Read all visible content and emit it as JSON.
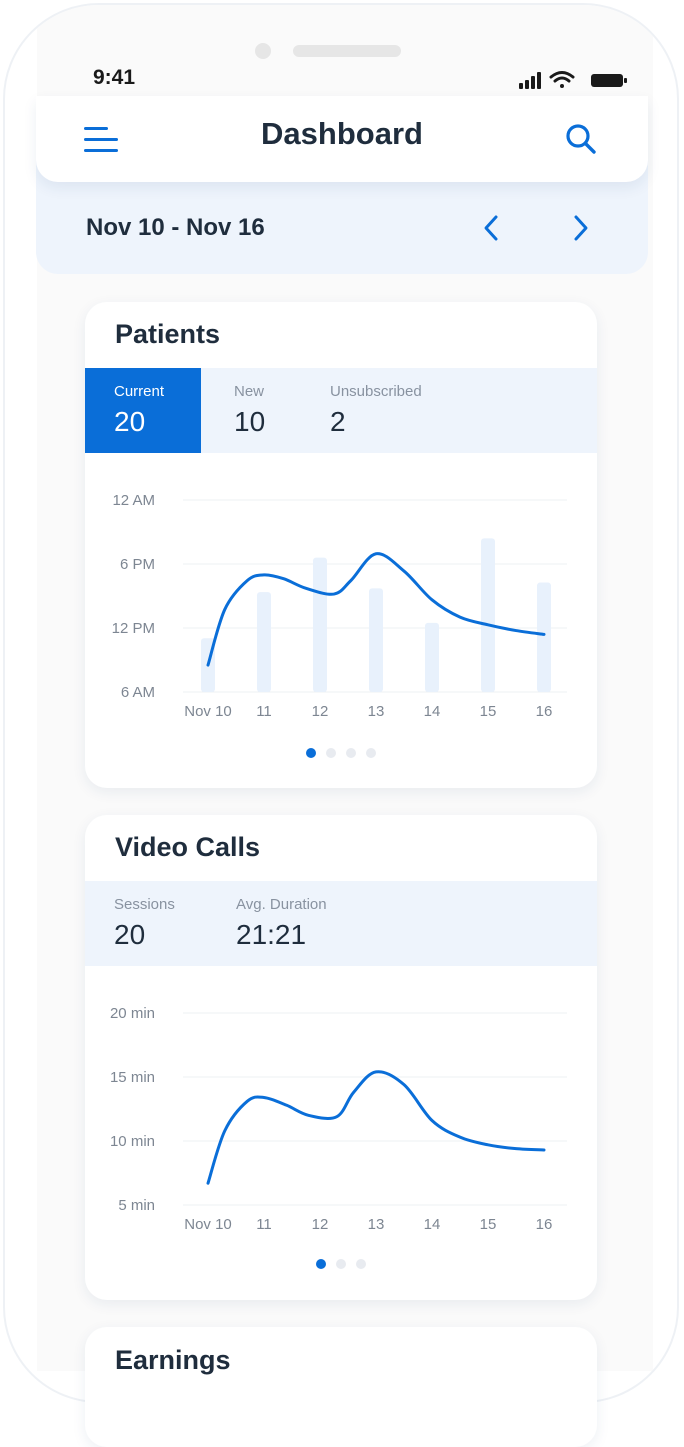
{
  "status_bar": {
    "time": "9:41"
  },
  "header": {
    "title": "Dashboard",
    "menu_icon": "hamburger-menu-icon",
    "search_icon": "search-icon"
  },
  "date_nav": {
    "range": "Nov 10 - Nov 16",
    "prev_icon": "chevron-left-icon",
    "next_icon": "chevron-right-icon"
  },
  "colors": {
    "accent": "#0a6ed8",
    "bar_fill": "#e8f1fc",
    "stats_bg": "#eef4fc",
    "text": "#1f2d3d"
  },
  "patients": {
    "title": "Patients",
    "stats": [
      {
        "label": "Current",
        "value": "20",
        "active": true
      },
      {
        "label": "New",
        "value": "10",
        "active": false
      },
      {
        "label": "Unsubscribed",
        "value": "2",
        "active": false
      }
    ],
    "pager": {
      "count": 4,
      "active": 0
    }
  },
  "video_calls": {
    "title": "Video Calls",
    "stats": [
      {
        "label": "Sessions",
        "value": "20"
      },
      {
        "label": "Avg. Duration",
        "value": "21:21"
      }
    ],
    "pager": {
      "count": 3,
      "active": 0
    }
  },
  "earnings": {
    "title": "Earnings"
  },
  "chart_data": [
    {
      "type": "line",
      "title": "",
      "y_ticks": [
        "12 AM",
        "6 PM",
        "12 PM",
        "6 AM"
      ],
      "x_ticks": [
        "Nov 10",
        "11",
        "12",
        "13",
        "14",
        "15",
        "16"
      ],
      "bars_series": {
        "name": "",
        "values": [
          0.28,
          0.52,
          0.7,
          0.54,
          0.36,
          0.8,
          0.57
        ]
      },
      "line_series": {
        "name": "",
        "x": [
          0,
          0.3,
          0.7,
          1,
          1.35,
          1.75,
          2.25,
          2.55,
          3,
          3.5,
          4,
          4.5,
          5,
          5.5,
          6
        ],
        "y": [
          0.14,
          0.43,
          0.58,
          0.61,
          0.59,
          0.54,
          0.51,
          0.58,
          0.72,
          0.63,
          0.48,
          0.39,
          0.35,
          0.32,
          0.3
        ]
      },
      "grid": true
    },
    {
      "type": "line",
      "title": "",
      "y_ticks": [
        "20 min",
        "15 min",
        "10 min",
        "5 min"
      ],
      "x_ticks": [
        "Nov 10",
        "11",
        "12",
        "13",
        "14",
        "15",
        "16"
      ],
      "line_series": {
        "name": "",
        "x": [
          0,
          0.3,
          0.7,
          1,
          1.4,
          1.8,
          2.3,
          2.6,
          3,
          3.5,
          4,
          4.5,
          5,
          5.5,
          6
        ],
        "y": [
          6.7,
          10.8,
          13.1,
          13.4,
          12.8,
          12.0,
          11.9,
          13.8,
          15.4,
          14.4,
          11.6,
          10.3,
          9.7,
          9.4,
          9.3
        ]
      },
      "ylim": [
        5,
        20
      ],
      "grid": true
    }
  ]
}
